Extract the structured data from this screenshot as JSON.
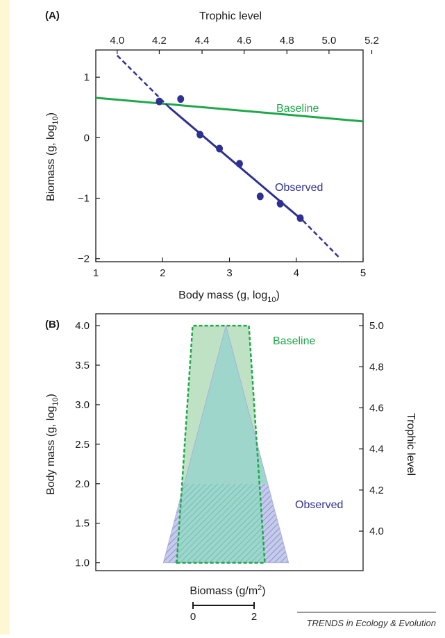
{
  "colors": {
    "baseline": "#1ea84a",
    "observed": "#2e3192",
    "side_bar": "#fdf8d2",
    "baseline_fill": "#bfe2c4",
    "observed_fill": "#c6cbea",
    "overlap_fill": "#9fd6cc"
  },
  "credit": "TRENDS in Ecology & Evolution",
  "chart_data": [
    {
      "panel_label": "(A)",
      "type": "scatter",
      "xlabel": "Body mass (g, log",
      "xlabel_sub": "10",
      "xlabel_end": ")",
      "ylabel": "Biomass (g, log",
      "ylabel_sub": "10",
      "ylabel_end": ")",
      "top_axis_label": "Trophic level",
      "xlim": [
        1,
        5
      ],
      "ylim": [
        -2.05,
        1.45
      ],
      "x_ticks": [
        1,
        2,
        3,
        4,
        5
      ],
      "y_ticks": [
        1,
        0,
        -1,
        -2
      ],
      "y_tick_labels": [
        "1",
        "0",
        "−1",
        "−2"
      ],
      "top_ticks": [
        "4.0",
        "4.2",
        "4.4",
        "4.6",
        "4.8",
        "5.0",
        "5.2"
      ],
      "top_tick_positions_body_mass": [
        1.32,
        1.95,
        2.59,
        3.22,
        3.86,
        4.49,
        5.13
      ],
      "grid": false,
      "series": [
        {
          "name": "Observed",
          "kind": "points_with_fit",
          "x": [
            1.95,
            2.27,
            2.56,
            2.85,
            3.15,
            3.46,
            3.76,
            4.06
          ],
          "y": [
            0.6,
            0.64,
            0.05,
            -0.18,
            -0.43,
            -0.97,
            -1.09,
            -1.33
          ],
          "fit_solid": [
            [
              2.1,
              0.5
            ],
            [
              4.1,
              -1.37
            ]
          ],
          "fit_dashed_start": [
            1.32,
            1.36
          ],
          "fit_dashed_end": [
            4.66,
            -2.0
          ]
        },
        {
          "name": "Baseline",
          "kind": "line",
          "x": [
            1,
            5
          ],
          "y": [
            0.66,
            0.27
          ]
        }
      ]
    },
    {
      "panel_label": "(B)",
      "type": "area",
      "description_type": "biomass pyramid",
      "xlabel": "Biomass (g/m",
      "xlabel_sup": "2",
      "xlabel_end": ")",
      "ylabel": "Body mass (g, log",
      "ylabel_sub": "10",
      "ylabel_end": ")",
      "right_axis_label": "Trophic level",
      "ylim": [
        0.9,
        4.15
      ],
      "y_ticks": [
        1.0,
        1.5,
        2.0,
        2.5,
        3.0,
        3.5,
        4.0
      ],
      "y_tick_labels": [
        "1.0",
        "1.5",
        "2.0",
        "2.5",
        "3.0",
        "3.5",
        "4.0"
      ],
      "right_ticks": [
        "5.0",
        "4.8",
        "4.6",
        "4.4",
        "4.2",
        "4.0"
      ],
      "right_tick_positions_body_mass": [
        4.0,
        3.48,
        2.96,
        2.44,
        1.92,
        1.4
      ],
      "scale_bar_ticks": [
        "0",
        "2"
      ],
      "scale_bar_value": [
        0,
        2
      ],
      "grid": false,
      "series": [
        {
          "name": "Baseline",
          "style": "dashed outline, green fill",
          "half_width_at_body_mass": [
            [
              1.0,
              1.44
            ],
            [
              4.0,
              0.92
            ]
          ]
        },
        {
          "name": "Observed",
          "style": "blue triangle, hatched below 2.0",
          "half_width_at_body_mass": [
            [
              1.0,
              2.05
            ],
            [
              4.0,
              0.0
            ]
          ],
          "center_offset": 0.17
        }
      ]
    }
  ]
}
